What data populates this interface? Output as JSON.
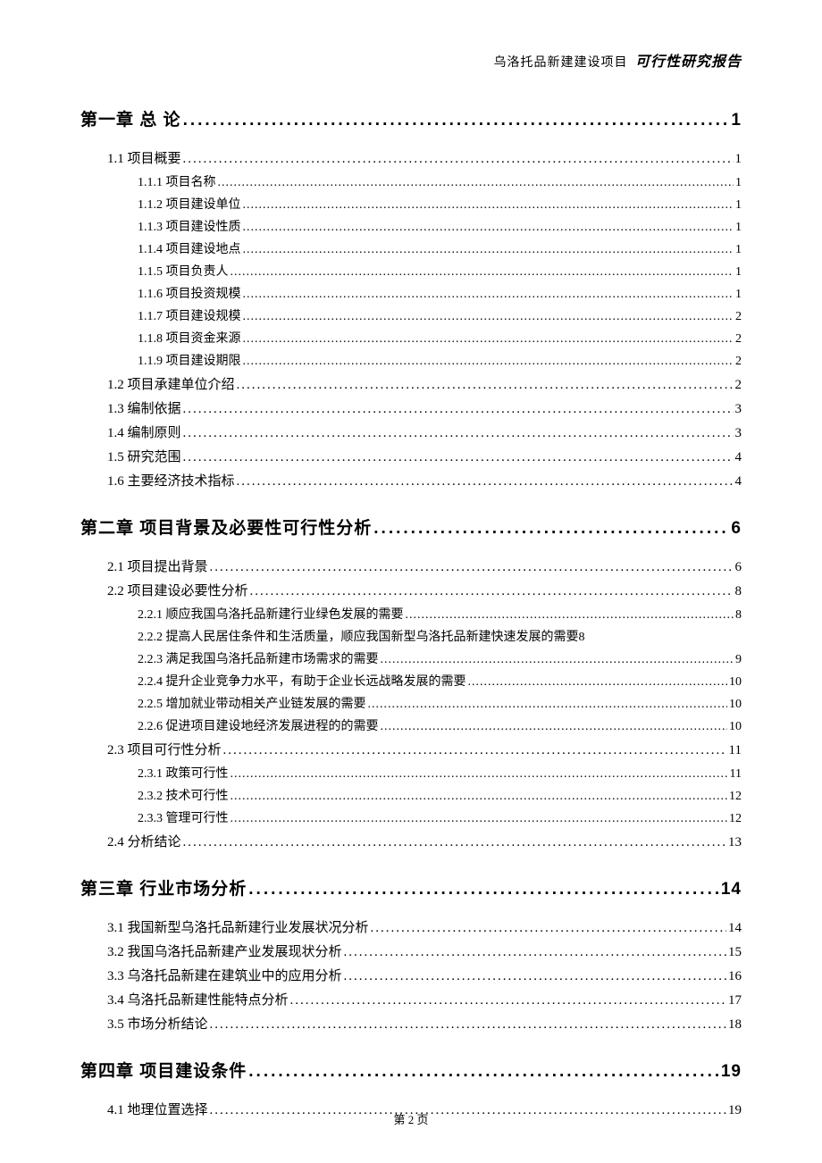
{
  "header": {
    "plain": "乌洛托品新建建设项目",
    "italic": "可行性研究报告"
  },
  "footer": "第 2 页",
  "chapters": [
    {
      "label": "第一章 总 论",
      "page": "1",
      "sections": [
        {
          "label": "1.1 项目概要",
          "page": "1",
          "subs": [
            {
              "label": "1.1.1 项目名称",
              "page": "1"
            },
            {
              "label": "1.1.2 项目建设单位",
              "page": "1"
            },
            {
              "label": "1.1.3 项目建设性质",
              "page": "1"
            },
            {
              "label": "1.1.4 项目建设地点",
              "page": "1"
            },
            {
              "label": "1.1.5 项目负责人",
              "page": "1"
            },
            {
              "label": "1.1.6 项目投资规模",
              "page": "1"
            },
            {
              "label": "1.1.7 项目建设规模",
              "page": "2"
            },
            {
              "label": "1.1.8 项目资金来源",
              "page": "2"
            },
            {
              "label": "1.1.9 项目建设期限",
              "page": "2"
            }
          ]
        },
        {
          "label": "1.2 项目承建单位介绍",
          "page": "2",
          "subs": []
        },
        {
          "label": "1.3 编制依据",
          "page": "3",
          "subs": []
        },
        {
          "label": "1.4 编制原则",
          "page": "3",
          "subs": []
        },
        {
          "label": "1.5 研究范围",
          "page": "4",
          "subs": []
        },
        {
          "label": "1.6 主要经济技术指标",
          "page": "4",
          "subs": []
        }
      ]
    },
    {
      "label": "第二章 项目背景及必要性可行性分析",
      "page": "6",
      "sections": [
        {
          "label": "2.1 项目提出背景",
          "page": "6",
          "subs": []
        },
        {
          "label": "2.2 项目建设必要性分析",
          "page": "8",
          "subs": [
            {
              "label": "2.2.1 顺应我国乌洛托品新建行业绿色发展的需要",
              "page": "8"
            },
            {
              "label": "2.2.2 提高人民居住条件和生活质量，顺应我国新型乌洛托品新建快速发展的需要8",
              "page": "",
              "nodots": true
            },
            {
              "label": "2.2.3 满足我国乌洛托品新建市场需求的需要",
              "page": "9"
            },
            {
              "label": "2.2.4 提升企业竞争力水平，有助于企业长远战略发展的需要",
              "page": "10"
            },
            {
              "label": "2.2.5 增加就业带动相关产业链发展的需要",
              "page": "10"
            },
            {
              "label": "2.2.6 促进项目建设地经济发展进程的的需要",
              "page": "10"
            }
          ]
        },
        {
          "label": "2.3 项目可行性分析",
          "page": "11",
          "subs": [
            {
              "label": "2.3.1 政策可行性",
              "page": "11"
            },
            {
              "label": "2.3.2 技术可行性",
              "page": "12"
            },
            {
              "label": "2.3.3 管理可行性",
              "page": "12"
            }
          ]
        },
        {
          "label": "2.4 分析结论",
          "page": "13",
          "subs": []
        }
      ]
    },
    {
      "label": "第三章 行业市场分析",
      "page": "14",
      "sections": [
        {
          "label": "3.1 我国新型乌洛托品新建行业发展状况分析",
          "page": "14",
          "subs": []
        },
        {
          "label": "3.2 我国乌洛托品新建产业发展现状分析",
          "page": "15",
          "subs": []
        },
        {
          "label": "3.3 乌洛托品新建在建筑业中的应用分析",
          "page": "16",
          "subs": []
        },
        {
          "label": "3.4 乌洛托品新建性能特点分析",
          "page": "17",
          "subs": []
        },
        {
          "label": "3.5 市场分析结论",
          "page": "18",
          "subs": []
        }
      ]
    },
    {
      "label": "第四章 项目建设条件",
      "page": "19",
      "sections": [
        {
          "label": "4.1 地理位置选择",
          "page": "19",
          "subs": []
        }
      ]
    }
  ]
}
